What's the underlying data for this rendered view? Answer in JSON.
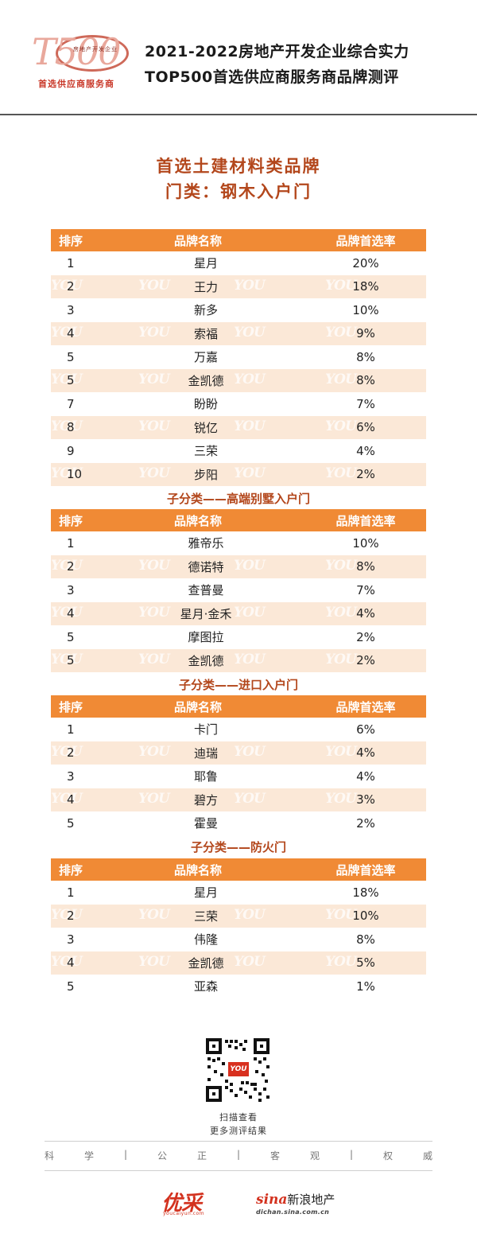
{
  "header": {
    "logo_big": "T500",
    "logo_small": "房地产开发企业",
    "logo_sub": "首选供应商服务商",
    "title_line1": "2021-2022房地产开发企业综合实力",
    "title_line2": "TOP500首选供应商服务商品牌测评"
  },
  "section": {
    "title": "首选土建材料类品牌",
    "subtitle": "门类：钢木入户门"
  },
  "table_header": {
    "rank": "排序",
    "name": "品牌名称",
    "rate": "品牌首选率"
  },
  "watermark": "YOU",
  "tables": [
    {
      "title": "",
      "rows": [
        {
          "rank": "1",
          "name": "星月",
          "rate": "20%"
        },
        {
          "rank": "2",
          "name": "王力",
          "rate": "18%"
        },
        {
          "rank": "3",
          "name": "新多",
          "rate": "10%"
        },
        {
          "rank": "4",
          "name": "索福",
          "rate": "9%"
        },
        {
          "rank": "5",
          "name": "万嘉",
          "rate": "8%"
        },
        {
          "rank": "5",
          "name": "金凯德",
          "rate": "8%"
        },
        {
          "rank": "7",
          "name": "盼盼",
          "rate": "7%"
        },
        {
          "rank": "8",
          "name": "锐亿",
          "rate": "6%"
        },
        {
          "rank": "9",
          "name": "三荣",
          "rate": "4%"
        },
        {
          "rank": "10",
          "name": "步阳",
          "rate": "2%"
        }
      ]
    },
    {
      "title": "子分类——高端别墅入户门",
      "rows": [
        {
          "rank": "1",
          "name": "雅帝乐",
          "rate": "10%"
        },
        {
          "rank": "2",
          "name": "德诺特",
          "rate": "8%"
        },
        {
          "rank": "3",
          "name": "查普曼",
          "rate": "7%"
        },
        {
          "rank": "4",
          "name": "星月·金禾",
          "rate": "4%"
        },
        {
          "rank": "5",
          "name": "摩图拉",
          "rate": "2%"
        },
        {
          "rank": "5",
          "name": "金凯德",
          "rate": "2%"
        }
      ]
    },
    {
      "title": "子分类——进口入户门",
      "rows": [
        {
          "rank": "1",
          "name": "卡门",
          "rate": "6%"
        },
        {
          "rank": "2",
          "name": "迪瑞",
          "rate": "4%"
        },
        {
          "rank": "3",
          "name": "耶鲁",
          "rate": "4%"
        },
        {
          "rank": "4",
          "name": "碧方",
          "rate": "3%"
        },
        {
          "rank": "5",
          "name": "霍曼",
          "rate": "2%"
        }
      ]
    },
    {
      "title": "子分类——防火门",
      "rows": [
        {
          "rank": "1",
          "name": "星月",
          "rate": "18%"
        },
        {
          "rank": "2",
          "name": "三荣",
          "rate": "10%"
        },
        {
          "rank": "3",
          "name": "伟隆",
          "rate": "8%"
        },
        {
          "rank": "4",
          "name": "金凯德",
          "rate": "5%"
        },
        {
          "rank": "5",
          "name": "亚森",
          "rate": "1%"
        }
      ]
    }
  ],
  "footer": {
    "qr_center": "YOU",
    "scan_line1": "扫描查看",
    "scan_line2": "更多测评结果",
    "motto": [
      "科",
      "学",
      "|",
      "公",
      "正",
      "|",
      "客",
      "观",
      "|",
      "权",
      "威"
    ],
    "brand_left": "优采",
    "brand_left_sub": "youcaiyun.com",
    "brand_right_sina": "sina",
    "brand_right_text": "新浪地产",
    "brand_right_sub": "dichan.sina.com.cn"
  },
  "colors": {
    "header_orange": "#f08a35",
    "row_alt": "#fbe8d7",
    "title_brown": "#b3471c",
    "brand_red": "#d3321f"
  }
}
